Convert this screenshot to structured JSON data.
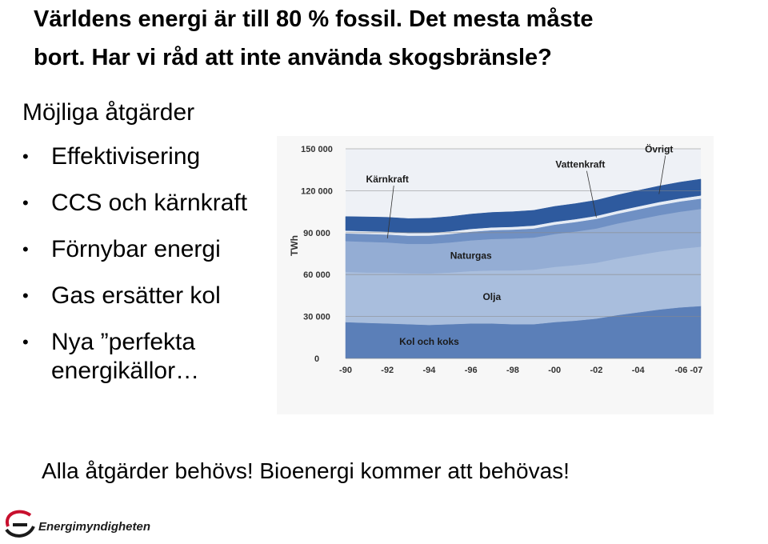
{
  "slide": {
    "title_line1": "Världens energi är till 80 % fossil. Det mesta måste",
    "title_line2": "bort. Har vi råd att inte använda skogsbränsle?",
    "subheading": "Möjliga åtgärder",
    "bullets": [
      "Effektivisering",
      "CCS och kärnkraft",
      "Förnybar energi",
      "Gas ersätter kol",
      "Nya ”perfekta energikällor…"
    ],
    "footer": "Alla åtgärder behövs! Bioenergi kommer att behövas!",
    "logo_text": "Energimyndigheten",
    "bullet_glyph": "•"
  },
  "chart_data": {
    "type": "area",
    "stacked": true,
    "title": "",
    "xlabel": "",
    "ylabel": "TWh",
    "ylim": [
      0,
      150000
    ],
    "yticks": [
      0,
      30000,
      60000,
      90000,
      120000,
      150000
    ],
    "ytick_labels": [
      "0",
      "30 000",
      "60 000",
      "90 000",
      "120 000",
      "150 000"
    ],
    "x": [
      "-90",
      "-91",
      "-92",
      "-93",
      "-94",
      "-95",
      "-96",
      "-97",
      "-98",
      "-99",
      "-00",
      "-01",
      "-02",
      "-03",
      "-04",
      "-05",
      "-06",
      "-07"
    ],
    "xtick_labels": [
      "-90",
      "-92",
      "-94",
      "-96",
      "-98",
      "-00",
      "-02",
      "-04",
      "-06 -07"
    ],
    "grid": true,
    "series": [
      {
        "name": "Kol och koks",
        "color": "#5b7fb8",
        "values": [
          26000,
          25500,
          25000,
          24500,
          24000,
          24500,
          25000,
          25000,
          24500,
          24500,
          26000,
          27000,
          28500,
          31000,
          33000,
          35000,
          36500,
          37500
        ]
      },
      {
        "name": "Olja",
        "color": "#a9bedd",
        "values": [
          36000,
          36000,
          36500,
          36500,
          36800,
          37000,
          37500,
          38000,
          38500,
          39000,
          39500,
          39800,
          40000,
          40500,
          41000,
          41500,
          42000,
          42500
        ]
      },
      {
        "name": "Naturgas",
        "color": "#94add4",
        "values": [
          22000,
          22000,
          21500,
          21000,
          21200,
          21500,
          22000,
          22500,
          22800,
          23000,
          23500,
          24000,
          24500,
          25000,
          25500,
          26000,
          26500,
          27000
        ]
      },
      {
        "name": "Kärnkraft",
        "color": "#6f90c4",
        "values": [
          5500,
          5600,
          5700,
          5800,
          5900,
          6000,
          6200,
          6300,
          6400,
          6500,
          6700,
          6800,
          6900,
          7000,
          7100,
          7200,
          7300,
          7400
        ]
      },
      {
        "name": "Vattenkraft",
        "color": "#e6ecf5",
        "values": [
          2000,
          2000,
          2000,
          2000,
          2000,
          2000,
          2000,
          2000,
          2000,
          2100,
          2100,
          2100,
          2100,
          2100,
          2200,
          2200,
          2200,
          2200
        ]
      },
      {
        "name": "Övrigt",
        "color": "#2e5a9e",
        "values": [
          10000,
          10200,
          10300,
          10300,
          10400,
          10500,
          10600,
          10700,
          10800,
          10900,
          11000,
          11100,
          11200,
          11300,
          11400,
          11500,
          11600,
          11700
        ]
      }
    ],
    "annotations": [
      {
        "text": "Kärnkraft",
        "series": "Kärnkraft",
        "x": "-92"
      },
      {
        "text": "Vattenkraft",
        "series": "Vattenkraft",
        "x": "-02"
      },
      {
        "text": "Övrigt",
        "series": "Övrigt",
        "x": "-05"
      },
      {
        "text": "Naturgas",
        "series": "Naturgas",
        "x": "-96"
      },
      {
        "text": "Olja",
        "series": "Olja",
        "x": "-97"
      },
      {
        "text": "Kol och koks",
        "series": "Kol och koks",
        "x": "-94"
      }
    ]
  }
}
